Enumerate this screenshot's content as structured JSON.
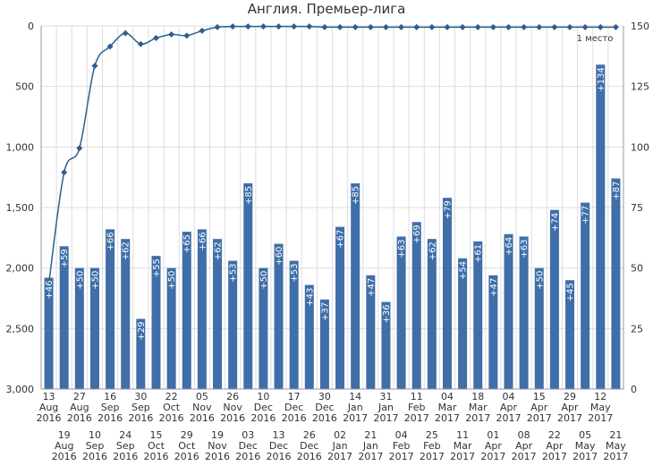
{
  "chart_data": {
    "type": "bar+line",
    "title": "Англия. Премьер-лига",
    "annotation": "1 место",
    "left_axis": {
      "ticks": [
        "0",
        "500",
        "1,000",
        "1,500",
        "2,000",
        "2,500",
        "3,000"
      ],
      "min": 0,
      "max": 3000,
      "reversed": true
    },
    "right_axis": {
      "ticks": [
        "150",
        "125",
        "100",
        "75",
        "50",
        "25",
        "0"
      ],
      "min": 0,
      "max": 150
    },
    "categories": [
      {
        "day": "13",
        "month": "Aug",
        "year": "2016"
      },
      {
        "day": "19",
        "month": "Aug",
        "year": "2016"
      },
      {
        "day": "27",
        "month": "Aug",
        "year": "2016"
      },
      {
        "day": "10",
        "month": "Sep",
        "year": "2016"
      },
      {
        "day": "16",
        "month": "Sep",
        "year": "2016"
      },
      {
        "day": "24",
        "month": "Sep",
        "year": "2016"
      },
      {
        "day": "30",
        "month": "Sep",
        "year": "2016"
      },
      {
        "day": "15",
        "month": "Oct",
        "year": "2016"
      },
      {
        "day": "22",
        "month": "Oct",
        "year": "2016"
      },
      {
        "day": "29",
        "month": "Oct",
        "year": "2016"
      },
      {
        "day": "05",
        "month": "Nov",
        "year": "2016"
      },
      {
        "day": "19",
        "month": "Nov",
        "year": "2016"
      },
      {
        "day": "26",
        "month": "Nov",
        "year": "2016"
      },
      {
        "day": "03",
        "month": "Dec",
        "year": "2016"
      },
      {
        "day": "10",
        "month": "Dec",
        "year": "2016"
      },
      {
        "day": "13",
        "month": "Dec",
        "year": "2016"
      },
      {
        "day": "17",
        "month": "Dec",
        "year": "2016"
      },
      {
        "day": "26",
        "month": "Dec",
        "year": "2016"
      },
      {
        "day": "30",
        "month": "Dec",
        "year": "2016"
      },
      {
        "day": "02",
        "month": "Jan",
        "year": "2017"
      },
      {
        "day": "14",
        "month": "Jan",
        "year": "2017"
      },
      {
        "day": "21",
        "month": "Jan",
        "year": "2017"
      },
      {
        "day": "31",
        "month": "Jan",
        "year": "2017"
      },
      {
        "day": "04",
        "month": "Feb",
        "year": "2017"
      },
      {
        "day": "11",
        "month": "Feb",
        "year": "2017"
      },
      {
        "day": "25",
        "month": "Feb",
        "year": "2017"
      },
      {
        "day": "04",
        "month": "Mar",
        "year": "2017"
      },
      {
        "day": "11",
        "month": "Mar",
        "year": "2017"
      },
      {
        "day": "18",
        "month": "Mar",
        "year": "2017"
      },
      {
        "day": "01",
        "month": "Apr",
        "year": "2017"
      },
      {
        "day": "04",
        "month": "Apr",
        "year": "2017"
      },
      {
        "day": "08",
        "month": "Apr",
        "year": "2017"
      },
      {
        "day": "15",
        "month": "Apr",
        "year": "2017"
      },
      {
        "day": "22",
        "month": "Apr",
        "year": "2017"
      },
      {
        "day": "29",
        "month": "Apr",
        "year": "2017"
      },
      {
        "day": "05",
        "month": "May",
        "year": "2017"
      },
      {
        "day": "12",
        "month": "May",
        "year": "2017"
      },
      {
        "day": "21",
        "month": "May",
        "year": "2017"
      }
    ],
    "bars": {
      "name": "points",
      "axis": "right",
      "labels": [
        "+46",
        "+59",
        "+50",
        "+50",
        "+66",
        "+62",
        "+29",
        "+55",
        "+50",
        "+65",
        "+66",
        "+62",
        "+53",
        "+85",
        "+50",
        "+60",
        "+53",
        "+43",
        "+37",
        "+67",
        "+85",
        "+47",
        "+36",
        "+63",
        "+69",
        "+62",
        "+79",
        "+54",
        "+61",
        "+47",
        "+64",
        "+63",
        "+50",
        "+74",
        "+45",
        "+77",
        "+134",
        "+87"
      ],
      "values": [
        46,
        59,
        50,
        50,
        66,
        62,
        29,
        55,
        50,
        65,
        66,
        62,
        53,
        85,
        50,
        60,
        53,
        43,
        37,
        67,
        85,
        47,
        36,
        63,
        69,
        62,
        79,
        54,
        61,
        47,
        64,
        63,
        50,
        74,
        45,
        77,
        134,
        87
      ],
      "color": "#3f6ea9"
    },
    "line": {
      "name": "position",
      "axis": "left",
      "values": [
        2130,
        1210,
        1010,
        330,
        170,
        60,
        150,
        100,
        70,
        80,
        40,
        10,
        5,
        5,
        5,
        5,
        5,
        5,
        10,
        10,
        10,
        10,
        10,
        10,
        10,
        10,
        10,
        10,
        10,
        10,
        10,
        10,
        10,
        10,
        10,
        10,
        10,
        10
      ],
      "color": "#2f5d8c"
    },
    "colors": {
      "bar": "#3f6ea9",
      "line": "#2f5d8c",
      "grid": "#dddddd"
    }
  }
}
